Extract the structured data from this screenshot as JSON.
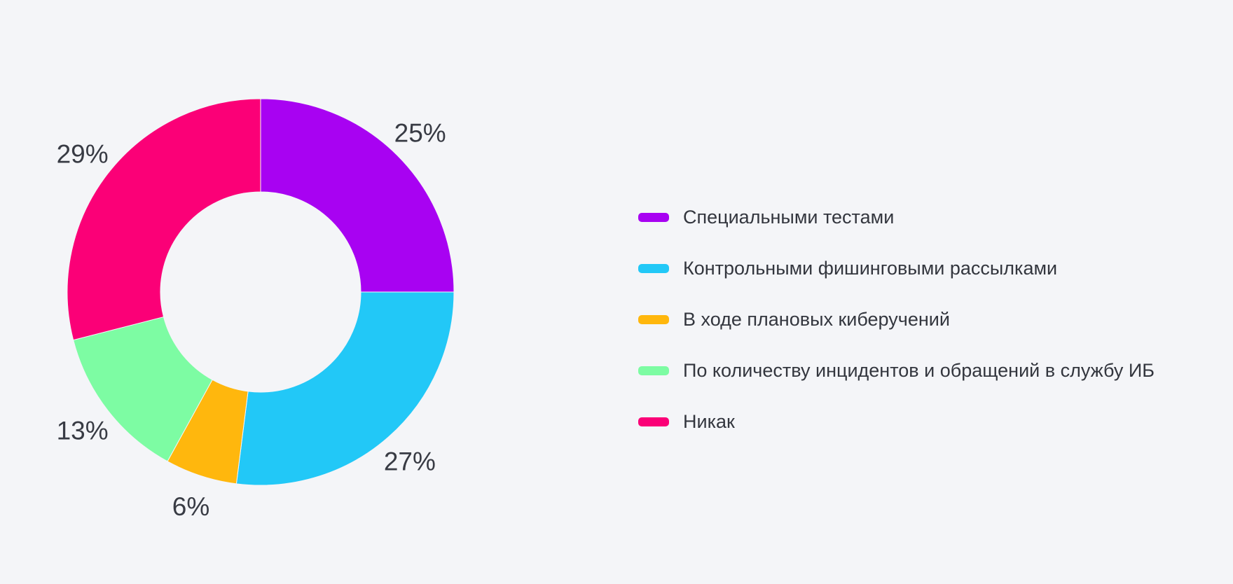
{
  "page": {
    "background": "#F4F5F8",
    "text_color": "#383B44"
  },
  "chart_data": {
    "type": "pie",
    "subtype": "donut",
    "title": "",
    "labels": [
      "Специальными тестами",
      "Контрольными фишинговыми рассылками",
      "В ходе плановых киберучений",
      "По количеству инцидентов и обращений в службу ИБ",
      "Никак"
    ],
    "values": [
      25,
      27,
      6,
      13,
      29
    ],
    "data_labels": [
      "25%",
      "27%",
      "6%",
      "13%",
      "29%"
    ],
    "unit": "%",
    "colors": [
      "#A802F2",
      "#22C8F7",
      "#FFB70D",
      "#7DFCA3",
      "#FB0077"
    ],
    "donut_hole_ratio": 0.518,
    "start_angle_deg": 0,
    "direction": "clockwise",
    "legend_position": "right",
    "grid": false
  }
}
